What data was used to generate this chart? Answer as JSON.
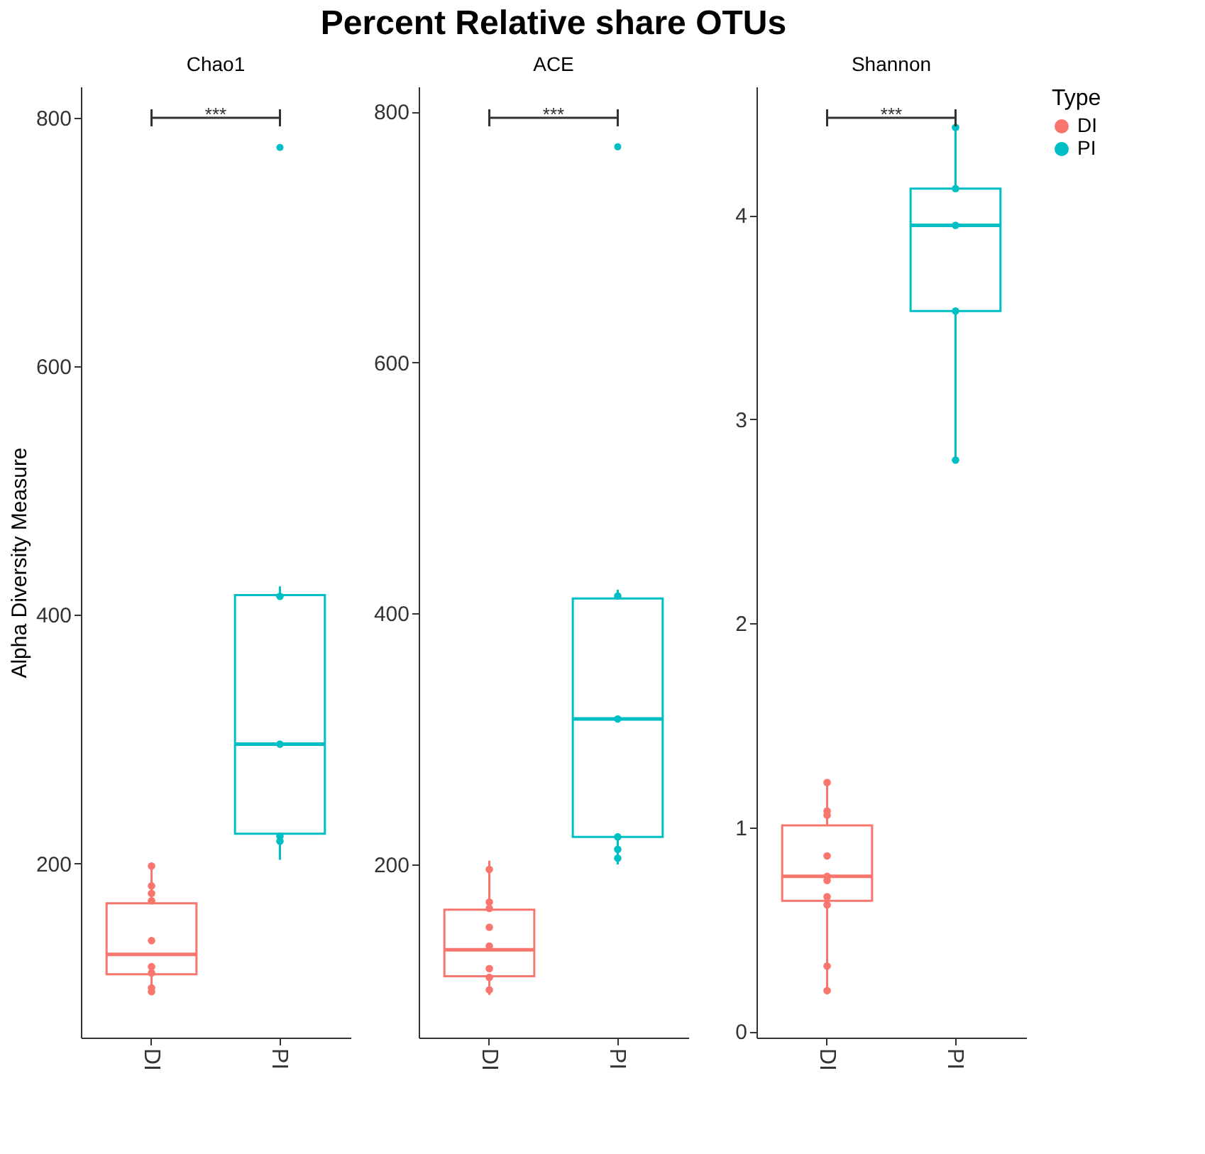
{
  "chart_data": [
    {
      "type": "box",
      "subtitle": "Chao1",
      "ylabel": "Alpha Diversity Measure",
      "categories": [
        "DI",
        "PI"
      ],
      "colors": [
        "#f8766d",
        "#00bfc4"
      ],
      "boxes": [
        {
          "low": 95,
          "q1": 111,
          "median": 127,
          "q3": 168,
          "high": 200
        },
        {
          "low": 203,
          "q1": 224,
          "median": 296,
          "q3": 416,
          "high": 423,
          "outliers": [
            776
          ]
        }
      ],
      "series": [
        {
          "name": "DI",
          "type": "scatter",
          "color": "#f8766d",
          "x": [
            "DI",
            "DI",
            "DI",
            "DI",
            "DI",
            "DI",
            "DI",
            "DI",
            "DI"
          ],
          "values": [
            198,
            182,
            176,
            170,
            138,
            117,
            112,
            100,
            97
          ]
        },
        {
          "name": "PI",
          "type": "scatter",
          "color": "#00bfc4",
          "x": [
            "PI",
            "PI",
            "PI",
            "PI"
          ],
          "values": [
            222,
            218,
            296,
            415
          ]
        }
      ],
      "annotations": [
        "***"
      ],
      "ylim": [
        60,
        825
      ],
      "yticks": [
        200,
        400,
        600,
        800
      ],
      "grid": false,
      "legend": "right"
    },
    {
      "type": "box",
      "title": "Percent Relative share OTUs",
      "subtitle": "ACE",
      "categories": [
        "DI",
        "PI"
      ],
      "colors": [
        "#f8766d",
        "#00bfc4"
      ],
      "boxes": [
        {
          "low": 96,
          "q1": 111,
          "median": 132,
          "q3": 164,
          "high": 203
        },
        {
          "low": 200,
          "q1": 222,
          "median": 316,
          "q3": 412,
          "high": 419,
          "outliers": [
            772
          ]
        }
      ],
      "series": [
        {
          "name": "DI",
          "type": "scatter",
          "color": "#f8766d",
          "x": [
            "DI",
            "DI",
            "DI",
            "DI",
            "DI",
            "DI",
            "DI",
            "DI"
          ],
          "values": [
            196,
            170,
            165,
            150,
            135,
            117,
            110,
            100
          ]
        },
        {
          "name": "PI",
          "type": "scatter",
          "color": "#00bfc4",
          "x": [
            "PI",
            "PI",
            "PI",
            "PI",
            "PI"
          ],
          "values": [
            414,
            316,
            222,
            212,
            205
          ]
        }
      ],
      "annotations": [
        "***"
      ],
      "ylim": [
        62,
        820
      ],
      "yticks": [
        200,
        400,
        600,
        800
      ],
      "grid": false,
      "legend": "right"
    },
    {
      "type": "box",
      "subtitle": "Shannon",
      "categories": [
        "DI",
        "PI"
      ],
      "colors": [
        "#f8766d",
        "#00bfc4"
      ],
      "boxes": [
        {
          "low": 0.2,
          "q1": 0.64,
          "median": 0.76,
          "q3": 1.01,
          "high": 1.23
        },
        {
          "low": 2.8,
          "q1": 3.53,
          "median": 3.95,
          "q3": 4.13,
          "high": 4.43
        }
      ],
      "series": [
        {
          "name": "DI",
          "type": "scatter",
          "color": "#f8766d",
          "x": [
            "DI",
            "DI",
            "DI",
            "DI",
            "DI",
            "DI",
            "DI",
            "DI",
            "DI",
            "DI"
          ],
          "values": [
            1.22,
            1.08,
            1.06,
            0.86,
            0.76,
            0.74,
            0.66,
            0.62,
            0.32,
            0.2
          ]
        },
        {
          "name": "PI",
          "type": "scatter",
          "color": "#00bfc4",
          "x": [
            "PI",
            "PI",
            "PI",
            "PI",
            "PI"
          ],
          "values": [
            2.8,
            3.53,
            3.95,
            4.13,
            4.43
          ]
        }
      ],
      "annotations": [
        "***"
      ],
      "ylim": [
        -0.03,
        4.63
      ],
      "yticks": [
        0,
        1,
        2,
        3,
        4
      ],
      "grid": false,
      "legend_title": "Type",
      "legend": "right"
    }
  ]
}
